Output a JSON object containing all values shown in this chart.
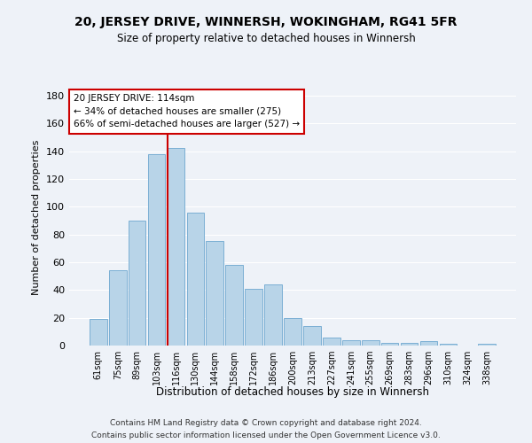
{
  "title": "20, JERSEY DRIVE, WINNERSH, WOKINGHAM, RG41 5FR",
  "subtitle": "Size of property relative to detached houses in Winnersh",
  "xlabel": "Distribution of detached houses by size in Winnersh",
  "ylabel": "Number of detached properties",
  "categories": [
    "61sqm",
    "75sqm",
    "89sqm",
    "103sqm",
    "116sqm",
    "130sqm",
    "144sqm",
    "158sqm",
    "172sqm",
    "186sqm",
    "200sqm",
    "213sqm",
    "227sqm",
    "241sqm",
    "255sqm",
    "269sqm",
    "283sqm",
    "296sqm",
    "310sqm",
    "324sqm",
    "338sqm"
  ],
  "values": [
    19,
    54,
    90,
    138,
    142,
    96,
    75,
    58,
    41,
    44,
    20,
    14,
    6,
    4,
    4,
    2,
    2,
    3,
    1,
    0,
    1
  ],
  "bar_color": "#b8d4e8",
  "bar_edge_color": "#7bafd4",
  "background_color": "#eef2f8",
  "grid_color": "#ffffff",
  "vline_color": "#cc0000",
  "vline_x_index": 4,
  "annotation_text": "20 JERSEY DRIVE: 114sqm\n← 34% of detached houses are smaller (275)\n66% of semi-detached houses are larger (527) →",
  "annotation_box_facecolor": "#ffffff",
  "annotation_box_edgecolor": "#cc0000",
  "ylim": [
    0,
    185
  ],
  "yticks": [
    0,
    20,
    40,
    60,
    80,
    100,
    120,
    140,
    160,
    180
  ],
  "footer_line1": "Contains HM Land Registry data © Crown copyright and database right 2024.",
  "footer_line2": "Contains public sector information licensed under the Open Government Licence v3.0."
}
